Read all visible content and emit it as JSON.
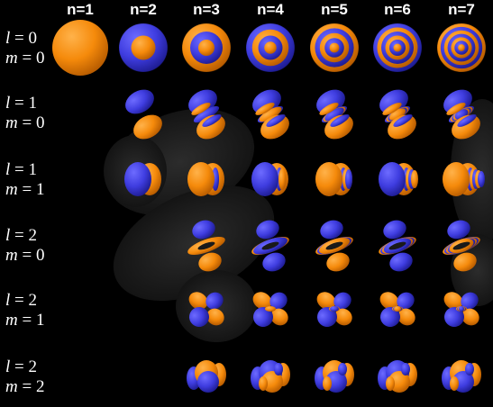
{
  "colors": {
    "positive": "#f58a0b",
    "negative": "#3f3de0",
    "background": "#000000",
    "shadow": "#262626"
  },
  "columns": [
    "n=1",
    "n=2",
    "n=3",
    "n=4",
    "n=5",
    "n=6",
    "n=7"
  ],
  "rows": [
    {
      "l_sym": "l",
      "l_val": " = 0",
      "m_sym": "m",
      "m_val": " = 0",
      "shape": "s",
      "n_start": 1
    },
    {
      "l_sym": "l",
      "l_val": " = 1",
      "m_sym": "m",
      "m_val": " = 0",
      "shape": "p0",
      "n_start": 2
    },
    {
      "l_sym": "l",
      "l_val": " = 1",
      "m_sym": "m",
      "m_val": " = 1",
      "shape": "p1",
      "n_start": 2
    },
    {
      "l_sym": "l",
      "l_val": " = 2",
      "m_sym": "m",
      "m_val": " = 0",
      "shape": "d0",
      "n_start": 3
    },
    {
      "l_sym": "l",
      "l_val": " = 2",
      "m_sym": "m",
      "m_val": " = 1",
      "shape": "d1",
      "n_start": 3
    },
    {
      "l_sym": "l",
      "l_val": " = 2",
      "m_sym": "m",
      "m_val": " = 2",
      "shape": "d2",
      "n_start": 3
    }
  ]
}
